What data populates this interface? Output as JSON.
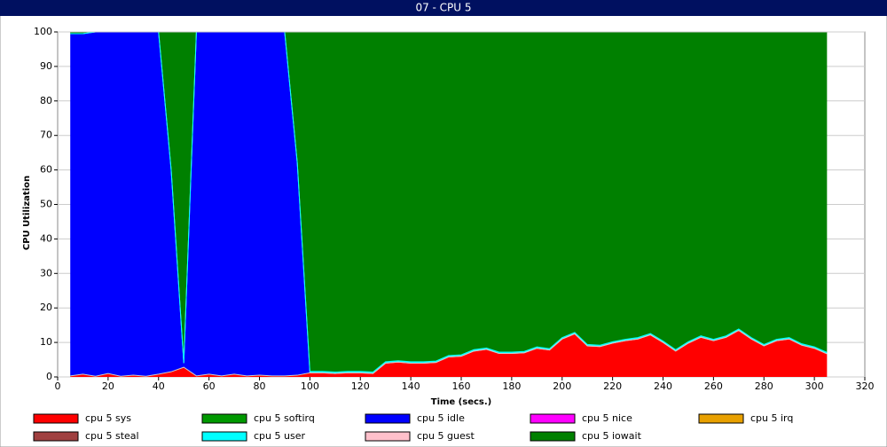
{
  "chart_data": {
    "type": "stacked_area",
    "title": "07 - CPU 5",
    "xlabel": "Time (secs.)",
    "ylabel": "CPU Utilization",
    "xlim": [
      0,
      320
    ],
    "xticks": [
      0,
      20,
      40,
      60,
      80,
      100,
      120,
      140,
      160,
      180,
      200,
      220,
      240,
      260,
      280,
      300,
      320
    ],
    "ylim": [
      0,
      100
    ],
    "yticks": [
      0,
      10,
      20,
      30,
      40,
      50,
      60,
      70,
      80,
      90,
      100
    ],
    "grid": true,
    "x": [
      5,
      10,
      15,
      20,
      25,
      30,
      35,
      40,
      45,
      50,
      55,
      60,
      65,
      70,
      75,
      80,
      85,
      90,
      95,
      100,
      105,
      110,
      115,
      120,
      125,
      130,
      135,
      140,
      145,
      150,
      155,
      160,
      165,
      170,
      175,
      180,
      185,
      190,
      195,
      200,
      205,
      210,
      215,
      220,
      225,
      230,
      235,
      240,
      245,
      250,
      255,
      260,
      265,
      270,
      275,
      280,
      285,
      290,
      295,
      300,
      305
    ],
    "series": [
      {
        "name": "cpu 5 sys",
        "color": "#ff0000",
        "values": [
          0.3,
          0.8,
          0.2,
          1,
          0.2,
          0.5,
          0.2,
          0.8,
          1.5,
          2.8,
          0.3,
          0.8,
          0.3,
          0.8,
          0.3,
          0.5,
          0.3,
          0.3,
          0.5,
          1.2,
          1.2,
          1,
          1.2,
          1.2,
          1,
          4,
          4.3,
          4,
          4,
          4.2,
          5.8,
          6,
          7.5,
          8,
          6.8,
          6.8,
          7,
          8.3,
          7.8,
          11,
          12.5,
          9,
          8.8,
          9.8,
          10.5,
          11,
          12.2,
          10,
          7.5,
          9.8,
          11.5,
          10.5,
          11.5,
          13.5,
          11,
          9,
          10.5,
          11,
          9.2,
          8.3,
          6.7
        ]
      },
      {
        "name": "cpu 5 softirq",
        "color": "#009900",
        "values": [
          0,
          0,
          0,
          0,
          0,
          0,
          0,
          0,
          0,
          0,
          0,
          0,
          0,
          0,
          0,
          0,
          0,
          0,
          0,
          0,
          0,
          0,
          0,
          0,
          0,
          0,
          0,
          0,
          0,
          0,
          0,
          0,
          0,
          0,
          0,
          0,
          0,
          0,
          0,
          0,
          0,
          0,
          0,
          0,
          0,
          0,
          0,
          0,
          0,
          0,
          0,
          0,
          0,
          0,
          0,
          0,
          0,
          0,
          0,
          0,
          0
        ]
      },
      {
        "name": "cpu 5 idle",
        "color": "#0000ff",
        "values": [
          99.2,
          98.7,
          99.8,
          99,
          99.8,
          99.5,
          99.8,
          99.2,
          58.5,
          1.2,
          99.7,
          99.2,
          99.7,
          99.2,
          99.7,
          99.5,
          99.7,
          99.7,
          61.5,
          0,
          0,
          0,
          0,
          0,
          0,
          0,
          0,
          0,
          0,
          0,
          0,
          0,
          0,
          0,
          0,
          0,
          0,
          0,
          0,
          0,
          0,
          0,
          0,
          0,
          0,
          0,
          0,
          0,
          0,
          0,
          0,
          0,
          0,
          0,
          0,
          0,
          0,
          0,
          0,
          0,
          0
        ]
      },
      {
        "name": "cpu 5 nice",
        "color": "#ff00ff",
        "values": [
          0,
          0,
          0,
          0,
          0,
          0,
          0,
          0,
          0,
          0,
          0,
          0,
          0,
          0,
          0,
          0,
          0,
          0,
          0,
          0,
          0,
          0,
          0,
          0,
          0,
          0,
          0,
          0,
          0,
          0,
          0,
          0,
          0,
          0,
          0,
          0,
          0,
          0,
          0,
          0,
          0,
          0,
          0,
          0,
          0,
          0,
          0,
          0,
          0,
          0,
          0,
          0,
          0,
          0,
          0,
          0,
          0,
          0,
          0,
          0,
          0
        ]
      },
      {
        "name": "cpu 5 irq",
        "color": "#e8a000",
        "values": [
          0,
          0,
          0,
          0,
          0,
          0,
          0,
          0,
          0,
          0,
          0,
          0,
          0,
          0,
          0,
          0,
          0,
          0,
          0,
          0,
          0,
          0,
          0,
          0,
          0,
          0,
          0,
          0,
          0,
          0,
          0,
          0,
          0,
          0,
          0,
          0,
          0,
          0,
          0,
          0,
          0,
          0,
          0,
          0,
          0,
          0,
          0,
          0,
          0,
          0,
          0,
          0,
          0,
          0,
          0,
          0,
          0,
          0,
          0,
          0,
          0
        ]
      },
      {
        "name": "cpu 5 steal",
        "color": "#a04040",
        "values": [
          0,
          0,
          0,
          0,
          0,
          0,
          0,
          0,
          0,
          0,
          0,
          0,
          0,
          0,
          0,
          0,
          0,
          0,
          0,
          0,
          0,
          0,
          0,
          0,
          0,
          0,
          0,
          0,
          0,
          0,
          0,
          0,
          0,
          0,
          0,
          0,
          0,
          0,
          0,
          0,
          0,
          0,
          0,
          0,
          0,
          0,
          0,
          0,
          0,
          0,
          0,
          0,
          0,
          0,
          0,
          0,
          0,
          0,
          0,
          0,
          0
        ]
      },
      {
        "name": "cpu 5 user",
        "color": "#00ffff",
        "values": [
          0,
          0,
          0,
          0,
          0,
          0,
          0,
          0,
          0,
          0,
          0,
          0,
          0,
          0,
          0,
          0,
          0,
          0,
          0,
          0.4,
          0.4,
          0.4,
          0.4,
          0.4,
          0.4,
          0.4,
          0.4,
          0.4,
          0.4,
          0.4,
          0.4,
          0.4,
          0.4,
          0.4,
          0.4,
          0.4,
          0.4,
          0.4,
          0.4,
          0.4,
          0.4,
          0.4,
          0.4,
          0.4,
          0.4,
          0.4,
          0.4,
          0.4,
          0.4,
          0.4,
          0.4,
          0.4,
          0.4,
          0.4,
          0.4,
          0.4,
          0.4,
          0.4,
          0.4,
          0.4,
          0.4
        ]
      },
      {
        "name": "cpu 5 guest",
        "color": "#ffc0cb",
        "values": [
          0,
          0,
          0,
          0,
          0,
          0,
          0,
          0,
          0,
          0,
          0,
          0,
          0,
          0,
          0,
          0,
          0,
          0,
          0,
          0,
          0,
          0,
          0,
          0,
          0,
          0,
          0,
          0,
          0,
          0,
          0,
          0,
          0,
          0,
          0,
          0,
          0,
          0,
          0,
          0,
          0,
          0,
          0,
          0,
          0,
          0,
          0,
          0,
          0,
          0,
          0,
          0,
          0,
          0,
          0,
          0,
          0,
          0,
          0,
          0,
          0
        ]
      },
      {
        "name": "cpu 5 iowait",
        "color": "#008000",
        "values": [
          0.5,
          0.5,
          0,
          0,
          0,
          0,
          0,
          0,
          40,
          96,
          0,
          0,
          0,
          0,
          0,
          0,
          0,
          0,
          38,
          98.4,
          98.4,
          98.6,
          98.4,
          98.4,
          98.6,
          95.6,
          95.3,
          95.6,
          95.6,
          95.4,
          93.8,
          93.6,
          92.1,
          91.6,
          92.8,
          92.8,
          92.6,
          91.3,
          91.8,
          88.6,
          87.1,
          90.6,
          90.8,
          89.8,
          89.1,
          88.6,
          87.4,
          89.6,
          92.1,
          89.8,
          88.1,
          89.1,
          88.1,
          86.1,
          88.6,
          90.6,
          89.1,
          88.6,
          90.4,
          91.3,
          92.9
        ]
      }
    ]
  }
}
